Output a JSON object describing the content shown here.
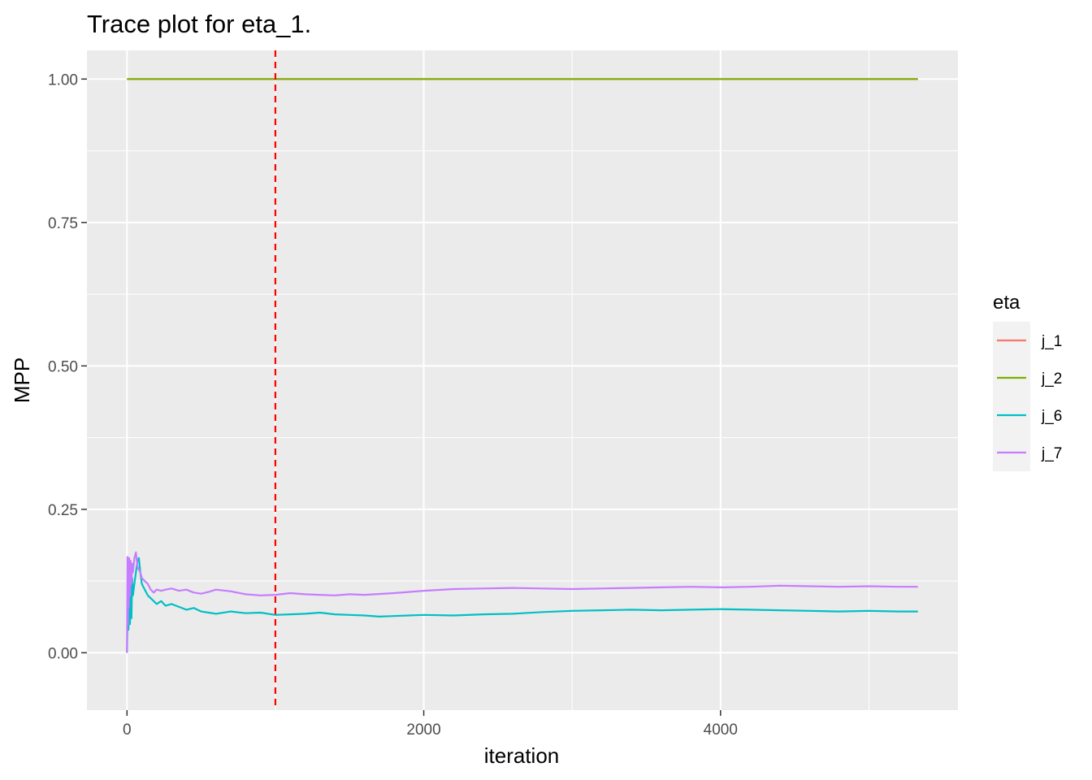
{
  "chart_data": {
    "type": "line",
    "title": "Trace plot for eta_1.",
    "xlabel": "iteration",
    "ylabel": "MPP",
    "xlim": [
      -270,
      5600
    ],
    "ylim": [
      -0.1,
      1.05
    ],
    "x_ticks": [
      0,
      2000,
      4000
    ],
    "x_tick_labels": [
      "0",
      "2000",
      "4000"
    ],
    "y_ticks": [
      0,
      0.25,
      0.5,
      0.75,
      1.0
    ],
    "y_tick_labels": [
      "0.00",
      "0.25",
      "0.50",
      "0.75",
      "1.00"
    ],
    "grid": true,
    "legend": {
      "title": "eta",
      "position": "right"
    },
    "reference_line": {
      "orientation": "vertical",
      "x": 1000,
      "color": "#ff0000",
      "style": "dashed"
    },
    "series": [
      {
        "name": "j_1",
        "color": "#f8766d",
        "x": [
          0,
          5330
        ],
        "y": [
          1.0,
          1.0
        ]
      },
      {
        "name": "j_2",
        "color": "#7cae00",
        "x": [
          0,
          5330
        ],
        "y": [
          1.0,
          1.0
        ]
      },
      {
        "name": "j_6",
        "color": "#00bfc4",
        "x": [
          0,
          5,
          10,
          15,
          20,
          25,
          30,
          35,
          40,
          50,
          60,
          70,
          80,
          90,
          100,
          120,
          140,
          160,
          180,
          200,
          230,
          260,
          300,
          350,
          400,
          450,
          500,
          550,
          600,
          700,
          800,
          900,
          1000,
          1100,
          1200,
          1300,
          1400,
          1500,
          1600,
          1700,
          1800,
          2000,
          2200,
          2400,
          2600,
          2800,
          3000,
          3200,
          3400,
          3600,
          3800,
          4000,
          4200,
          4400,
          4600,
          4800,
          5000,
          5200,
          5330
        ],
        "y": [
          0.0,
          0.08,
          0.04,
          0.1,
          0.05,
          0.12,
          0.06,
          0.13,
          0.1,
          0.12,
          0.14,
          0.16,
          0.165,
          0.14,
          0.12,
          0.11,
          0.1,
          0.095,
          0.09,
          0.085,
          0.09,
          0.082,
          0.085,
          0.08,
          0.075,
          0.078,
          0.072,
          0.07,
          0.068,
          0.072,
          0.069,
          0.07,
          0.066,
          0.067,
          0.068,
          0.07,
          0.067,
          0.066,
          0.065,
          0.063,
          0.064,
          0.066,
          0.065,
          0.067,
          0.068,
          0.071,
          0.073,
          0.074,
          0.075,
          0.074,
          0.075,
          0.076,
          0.075,
          0.074,
          0.073,
          0.072,
          0.073,
          0.072,
          0.072
        ]
      },
      {
        "name": "j_7",
        "color": "#c77cff",
        "x": [
          0,
          3,
          6,
          9,
          12,
          15,
          20,
          25,
          30,
          35,
          40,
          50,
          60,
          70,
          80,
          90,
          100,
          120,
          140,
          160,
          180,
          200,
          230,
          260,
          300,
          350,
          400,
          450,
          500,
          550,
          600,
          700,
          800,
          900,
          1000,
          1100,
          1200,
          1300,
          1400,
          1500,
          1600,
          1800,
          2000,
          2200,
          2400,
          2600,
          2800,
          3000,
          3200,
          3400,
          3600,
          3800,
          4000,
          4200,
          4400,
          4600,
          4800,
          5000,
          5200,
          5330
        ],
        "y": [
          0.0,
          0.167,
          0.05,
          0.15,
          0.08,
          0.165,
          0.1,
          0.16,
          0.12,
          0.155,
          0.14,
          0.165,
          0.175,
          0.15,
          0.145,
          0.14,
          0.13,
          0.125,
          0.12,
          0.11,
          0.105,
          0.11,
          0.108,
          0.11,
          0.112,
          0.108,
          0.11,
          0.105,
          0.103,
          0.106,
          0.11,
          0.107,
          0.102,
          0.1,
          0.101,
          0.104,
          0.102,
          0.101,
          0.1,
          0.102,
          0.101,
          0.104,
          0.108,
          0.111,
          0.112,
          0.113,
          0.112,
          0.111,
          0.112,
          0.113,
          0.114,
          0.115,
          0.114,
          0.115,
          0.117,
          0.116,
          0.115,
          0.116,
          0.115,
          0.115
        ]
      }
    ]
  }
}
